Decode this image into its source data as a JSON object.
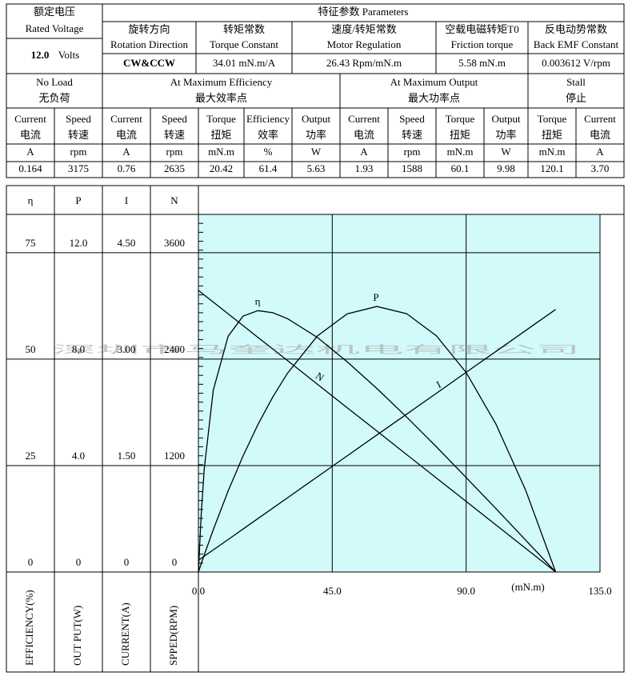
{
  "table": {
    "rated_voltage": {
      "zh": "额定电压",
      "en": "Rated Voltage",
      "value": "12.0",
      "unit": "Volts"
    },
    "parameters_title": "特征参数 Parameters",
    "parameters": [
      {
        "zh": "旋转方向",
        "en": "Rotation Direction",
        "value": "CW&CCW"
      },
      {
        "zh": "转矩常数",
        "en": "Torque Constant",
        "value": "34.01 mN.m/A"
      },
      {
        "zh": "速度/转矩常数",
        "en": "Motor Regulation",
        "value": "26.43 Rpm/mN.m"
      },
      {
        "zh": "空载电磁转矩T0",
        "en": "Friction torque",
        "value": "5.58 mN.m"
      },
      {
        "zh": "反电动势常数",
        "en": "Back EMF Constant",
        "value": "0.003612 V/rpm"
      }
    ],
    "groups": [
      {
        "en": "No Load",
        "zh": "无负荷"
      },
      {
        "en": "At Maximum Efficiency",
        "zh": "最大效率点"
      },
      {
        "en": "At Maximum Output",
        "zh": "最大功率点"
      },
      {
        "en": "Stall",
        "zh": "停止"
      }
    ],
    "columns": [
      {
        "en": "Current",
        "zh": "电流",
        "unit": "A",
        "value": "0.164"
      },
      {
        "en": "Speed",
        "zh": "转速",
        "unit": "rpm",
        "value": "3175"
      },
      {
        "en": "Current",
        "zh": "电流",
        "unit": "A",
        "value": "0.76"
      },
      {
        "en": "Speed",
        "zh": "转速",
        "unit": "rpm",
        "value": "2635"
      },
      {
        "en": "Torque",
        "zh": "扭矩",
        "unit": "mN.m",
        "value": "20.42"
      },
      {
        "en": "Efficiency",
        "zh": "效率",
        "unit": "%",
        "value": "61.4"
      },
      {
        "en": "Output",
        "zh": "功率",
        "unit": "W",
        "value": "5.63"
      },
      {
        "en": "Current",
        "zh": "电流",
        "unit": "A",
        "value": "1.93"
      },
      {
        "en": "Speed",
        "zh": "转速",
        "unit": "rpm",
        "value": "1588"
      },
      {
        "en": "Torque",
        "zh": "扭矩",
        "unit": "mN.m",
        "value": "60.1"
      },
      {
        "en": "Output",
        "zh": "功率",
        "unit": "W",
        "value": "9.98"
      },
      {
        "en": "Torque",
        "zh": "扭矩",
        "unit": "mN.m",
        "value": "120.1"
      },
      {
        "en": "Current",
        "zh": "电流",
        "unit": "A",
        "value": "3.70"
      }
    ]
  },
  "chart_data": {
    "type": "line",
    "watermark": "深圳市马奎达机电有限公司",
    "x": [
      0,
      1,
      2,
      5,
      10,
      15,
      20,
      25,
      30,
      40,
      50,
      60,
      70,
      80,
      90,
      100,
      110,
      120.1
    ],
    "xlim": [
      0,
      135
    ],
    "xticks": [
      {
        "value": 0,
        "label": "0.0"
      },
      {
        "value": 45,
        "label": "45.0"
      },
      {
        "value": 90,
        "label": "90.0"
      },
      {
        "value": 135,
        "label": "135.0"
      }
    ],
    "xlabel": "(mN.m)",
    "grid": true,
    "background": "#d2fafa",
    "y_axes": [
      {
        "symbol": "η",
        "label": "EFFICIENCY(%)",
        "ylim": [
          0,
          84
        ],
        "yticks": [
          0,
          25,
          50,
          75
        ]
      },
      {
        "symbol": "P",
        "label": "OUT PUT(W)",
        "ylim": [
          0,
          13.44
        ],
        "yticks": [
          0,
          {
            "value": 4,
            "label": "4.0"
          },
          {
            "value": 8,
            "label": "8.0"
          },
          {
            "value": 12,
            "label": "12.0"
          }
        ]
      },
      {
        "symbol": "I",
        "label": "CURRENT(A)",
        "ylim": [
          0,
          5.04
        ],
        "yticks": [
          0,
          {
            "value": 1.5,
            "label": "1.50"
          },
          {
            "value": 3,
            "label": "3.00"
          },
          {
            "value": 4.5,
            "label": "4.50"
          }
        ]
      },
      {
        "symbol": "N",
        "label": "SPPED(RPM)",
        "ylim": [
          0,
          4032
        ],
        "yticks": [
          0,
          1200,
          2400,
          3600
        ]
      }
    ],
    "series": [
      {
        "name": "η",
        "color": "#000000",
        "values": [
          0,
          14.2,
          24.4,
          42.7,
          55.4,
          60.1,
          61.4,
          60.9,
          59.5,
          55.1,
          49.4,
          43.1,
          36.4,
          29.4,
          22.2,
          14.9,
          7.5,
          0
        ]
      },
      {
        "name": "P",
        "color": "#000000",
        "values": [
          0,
          0.33,
          0.65,
          1.59,
          3.05,
          4.36,
          5.54,
          6.58,
          7.48,
          8.87,
          9.7,
          9.98,
          9.71,
          8.88,
          7.5,
          5.56,
          3.08,
          0
        ]
      },
      {
        "name": "I",
        "color": "#000000",
        "values": [
          0.164,
          0.193,
          0.223,
          0.311,
          0.458,
          0.606,
          0.753,
          0.9,
          1.047,
          1.342,
          1.636,
          1.931,
          2.225,
          2.519,
          2.814,
          3.108,
          3.403,
          3.7
        ]
      },
      {
        "name": "N",
        "color": "#000000",
        "values": [
          3175,
          3149,
          3122,
          3043,
          2911,
          2778,
          2646,
          2514,
          2382,
          2118,
          1853,
          1589,
          1324,
          1060,
          796,
          531,
          267,
          0
        ]
      }
    ]
  }
}
